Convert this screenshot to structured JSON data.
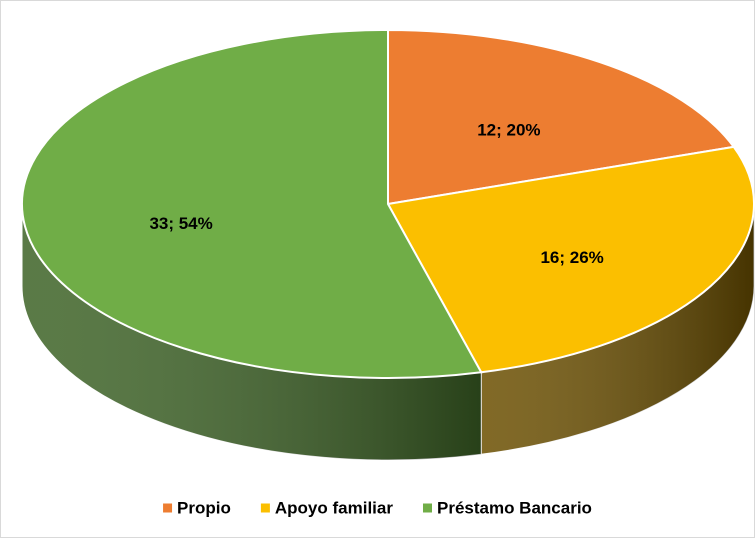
{
  "chart_data": {
    "type": "pie3d",
    "categories": [
      "Propio",
      "Apoyo familiar",
      "Préstamo Bancario"
    ],
    "values": [
      12,
      16,
      33
    ],
    "value_labels": [
      "12; 20%",
      "16; 26%",
      "33; 54%"
    ],
    "colors": [
      "#ed7d31",
      "#fbbf00",
      "#70ad47"
    ],
    "side_colors": [
      "#8a4517",
      "#6b4f00",
      "#3d6326"
    ],
    "legend": "bottom"
  }
}
